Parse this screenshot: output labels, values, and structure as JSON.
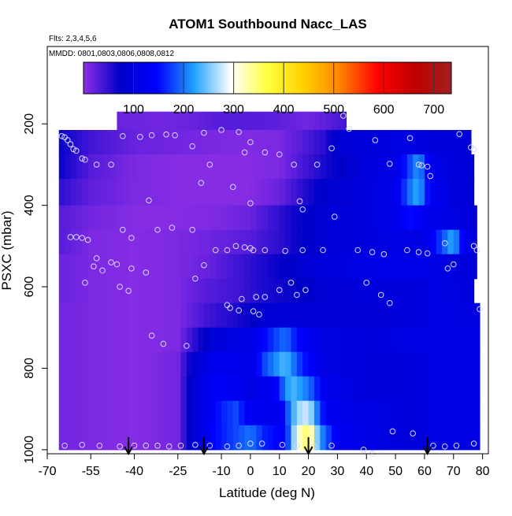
{
  "chart_data": {
    "type": "heatmap",
    "title": "ATOM1 Southbound Nacc_LAS",
    "annotations": [
      "Flts: 2,3,4,5,6",
      "MMDD: 0801,0803,0806,0808,0812"
    ],
    "xlabel": "Latitude (deg N)",
    "ylabel": "PSXC (mbar)",
    "xlim": [
      -70,
      82
    ],
    "ylim": [
      1010,
      10
    ],
    "y_inverted": true,
    "x_ticks": [
      -70,
      -55,
      -40,
      -25,
      -10,
      0,
      10,
      20,
      30,
      40,
      50,
      60,
      70,
      80
    ],
    "x_ticklabels": [
      "-70",
      "-55",
      "-40",
      "-25",
      "-10",
      "0",
      "10",
      "20",
      "30",
      "40",
      "50",
      "60",
      "70",
      "80"
    ],
    "y_ticks": [
      200,
      400,
      600,
      800,
      1000
    ],
    "y_ticklabels": [
      "200",
      "400",
      "600",
      "800",
      "1000"
    ],
    "colorbar": {
      "range": [
        0,
        735
      ],
      "ticks": [
        100,
        200,
        300,
        400,
        500,
        600,
        700
      ],
      "ticklabels": [
        "100",
        "200",
        "300",
        "400",
        "500",
        "600",
        "700"
      ],
      "colors": [
        "#8f2fe6",
        "#0000c8",
        "#0000ff",
        "#1fa0ff",
        "#ffffff",
        "#ffff40",
        "#ffd000",
        "#ff8000",
        "#ff0000",
        "#c00000",
        "#a02020"
      ]
    },
    "pressure_bins": [
      {
        "top": 170,
        "bottom": 215,
        "x0": -46,
        "x1": 33
      },
      {
        "top": 215,
        "bottom": 275,
        "x0": -66,
        "x1": 76
      },
      {
        "top": 275,
        "bottom": 335,
        "x0": -66,
        "x1": 77
      },
      {
        "top": 335,
        "bottom": 400,
        "x0": -66,
        "x1": 77
      },
      {
        "top": 400,
        "bottom": 460,
        "x0": -66,
        "x1": 78
      },
      {
        "top": 460,
        "bottom": 520,
        "x0": -66,
        "x1": 78
      },
      {
        "top": 520,
        "bottom": 580,
        "x0": -66,
        "x1": 78
      },
      {
        "top": 580,
        "bottom": 640,
        "x0": -66,
        "x1": 77
      },
      {
        "top": 640,
        "bottom": 700,
        "x0": -66,
        "x1": 79
      },
      {
        "top": 700,
        "bottom": 760,
        "x0": -66,
        "x1": 79
      },
      {
        "top": 760,
        "bottom": 820,
        "x0": -66,
        "x1": 79
      },
      {
        "top": 820,
        "bottom": 880,
        "x0": -66,
        "x1": 79
      },
      {
        "top": 880,
        "bottom": 940,
        "x0": -66,
        "x1": 79
      },
      {
        "top": 940,
        "bottom": 1000,
        "x0": -66,
        "x1": 79
      }
    ],
    "anchors": [
      [
        [
          -46,
          20
        ],
        [
          -30,
          15
        ],
        [
          -20,
          20
        ],
        [
          -10,
          30
        ],
        [
          0,
          30
        ],
        [
          10,
          25
        ],
        [
          20,
          15
        ],
        [
          33,
          40
        ]
      ],
      [
        [
          -66,
          70
        ],
        [
          -55,
          40
        ],
        [
          -40,
          20
        ],
        [
          -25,
          15
        ],
        [
          -10,
          10
        ],
        [
          0,
          8
        ],
        [
          10,
          10
        ],
        [
          25,
          50
        ],
        [
          30,
          90
        ],
        [
          40,
          100
        ],
        [
          55,
          110
        ],
        [
          62,
          100
        ],
        [
          70,
          100
        ],
        [
          76,
          95
        ]
      ],
      [
        [
          -66,
          70
        ],
        [
          -55,
          30
        ],
        [
          -40,
          10
        ],
        [
          -25,
          5
        ],
        [
          -10,
          5
        ],
        [
          0,
          5
        ],
        [
          10,
          10
        ],
        [
          25,
          60
        ],
        [
          40,
          100
        ],
        [
          50,
          110
        ],
        [
          55,
          180
        ],
        [
          58,
          220
        ],
        [
          62,
          120
        ],
        [
          70,
          100
        ],
        [
          77,
          90
        ]
      ],
      [
        [
          -66,
          50
        ],
        [
          -55,
          25
        ],
        [
          -40,
          10
        ],
        [
          -25,
          5
        ],
        [
          -10,
          5
        ],
        [
          0,
          5
        ],
        [
          10,
          20
        ],
        [
          25,
          80
        ],
        [
          40,
          100
        ],
        [
          50,
          120
        ],
        [
          55,
          200
        ],
        [
          58,
          230
        ],
        [
          62,
          130
        ],
        [
          70,
          100
        ],
        [
          77,
          90
        ]
      ],
      [
        [
          -66,
          30
        ],
        [
          -55,
          15
        ],
        [
          -40,
          5
        ],
        [
          -25,
          5
        ],
        [
          -10,
          10
        ],
        [
          0,
          20
        ],
        [
          10,
          50
        ],
        [
          20,
          80
        ],
        [
          30,
          100
        ],
        [
          40,
          100
        ],
        [
          50,
          120
        ],
        [
          55,
          150
        ],
        [
          62,
          120
        ],
        [
          70,
          110
        ],
        [
          78,
          90
        ]
      ],
      [
        [
          -66,
          30
        ],
        [
          -55,
          10
        ],
        [
          -40,
          5
        ],
        [
          -25,
          10
        ],
        [
          -10,
          20
        ],
        [
          0,
          30
        ],
        [
          10,
          50
        ],
        [
          20,
          80
        ],
        [
          30,
          100
        ],
        [
          40,
          100
        ],
        [
          50,
          110
        ],
        [
          60,
          110
        ],
        [
          66,
          180
        ],
        [
          70,
          230
        ],
        [
          74,
          120
        ],
        [
          78,
          100
        ]
      ],
      [
        [
          -66,
          20
        ],
        [
          -55,
          10
        ],
        [
          -40,
          5
        ],
        [
          -25,
          10
        ],
        [
          -15,
          20
        ],
        [
          -5,
          40
        ],
        [
          5,
          60
        ],
        [
          15,
          80
        ],
        [
          25,
          100
        ],
        [
          40,
          110
        ],
        [
          55,
          120
        ],
        [
          65,
          110
        ],
        [
          72,
          100
        ],
        [
          78,
          95
        ]
      ],
      [
        [
          -66,
          20
        ],
        [
          -55,
          10
        ],
        [
          -40,
          5
        ],
        [
          -25,
          10
        ],
        [
          -15,
          30
        ],
        [
          -5,
          40
        ],
        [
          5,
          60
        ],
        [
          15,
          70
        ],
        [
          25,
          90
        ],
        [
          40,
          100
        ],
        [
          55,
          100
        ],
        [
          65,
          110
        ],
        [
          77,
          100
        ]
      ],
      [
        [
          -66,
          15
        ],
        [
          -55,
          10
        ],
        [
          -40,
          5
        ],
        [
          -25,
          10
        ],
        [
          -15,
          40
        ],
        [
          -10,
          50
        ],
        [
          0,
          70
        ],
        [
          5,
          90
        ],
        [
          15,
          95
        ],
        [
          25,
          90
        ],
        [
          40,
          90
        ],
        [
          55,
          100
        ],
        [
          65,
          110
        ],
        [
          79,
          105
        ]
      ],
      [
        [
          -66,
          15
        ],
        [
          -55,
          10
        ],
        [
          -40,
          5
        ],
        [
          -25,
          10
        ],
        [
          -18,
          60
        ],
        [
          -12,
          100
        ],
        [
          -5,
          110
        ],
        [
          0,
          110
        ],
        [
          5,
          150
        ],
        [
          12,
          200
        ],
        [
          16,
          150
        ],
        [
          25,
          110
        ],
        [
          40,
          100
        ],
        [
          55,
          110
        ],
        [
          65,
          110
        ],
        [
          79,
          110
        ]
      ],
      [
        [
          -66,
          15
        ],
        [
          -55,
          10
        ],
        [
          -40,
          5
        ],
        [
          -25,
          15
        ],
        [
          -20,
          80
        ],
        [
          -12,
          130
        ],
        [
          -5,
          120
        ],
        [
          0,
          110
        ],
        [
          5,
          180
        ],
        [
          12,
          240
        ],
        [
          18,
          160
        ],
        [
          25,
          110
        ],
        [
          40,
          100
        ],
        [
          55,
          100
        ],
        [
          65,
          110
        ],
        [
          79,
          110
        ]
      ],
      [
        [
          -66,
          15
        ],
        [
          -55,
          10
        ],
        [
          -40,
          5
        ],
        [
          -25,
          15
        ],
        [
          -20,
          90
        ],
        [
          -12,
          140
        ],
        [
          -5,
          130
        ],
        [
          0,
          110
        ],
        [
          8,
          130
        ],
        [
          14,
          240
        ],
        [
          20,
          200
        ],
        [
          26,
          120
        ],
        [
          40,
          100
        ],
        [
          55,
          100
        ],
        [
          65,
          110
        ],
        [
          79,
          110
        ]
      ],
      [
        [
          -66,
          15
        ],
        [
          -55,
          10
        ],
        [
          -40,
          5
        ],
        [
          -25,
          15
        ],
        [
          -20,
          90
        ],
        [
          -10,
          160
        ],
        [
          -5,
          180
        ],
        [
          0,
          130
        ],
        [
          10,
          120
        ],
        [
          16,
          260
        ],
        [
          20,
          280
        ],
        [
          26,
          130
        ],
        [
          40,
          110
        ],
        [
          55,
          100
        ],
        [
          65,
          110
        ],
        [
          79,
          110
        ]
      ],
      [
        [
          -66,
          15
        ],
        [
          -55,
          10
        ],
        [
          -40,
          5
        ],
        [
          -25,
          15
        ],
        [
          -20,
          90
        ],
        [
          -12,
          150
        ],
        [
          -5,
          180
        ],
        [
          0,
          200
        ],
        [
          5,
          160
        ],
        [
          12,
          140
        ],
        [
          16,
          300
        ],
        [
          20,
          360
        ],
        [
          24,
          220
        ],
        [
          30,
          130
        ],
        [
          40,
          110
        ],
        [
          55,
          100
        ],
        [
          65,
          110
        ],
        [
          79,
          110
        ]
      ]
    ],
    "samples": [
      [
        -65,
        230
      ],
      [
        -64,
        233
      ],
      [
        -63,
        240
      ],
      [
        -62,
        250
      ],
      [
        -61,
        262
      ],
      [
        -60,
        266
      ],
      [
        -58,
        285
      ],
      [
        -57,
        288
      ],
      [
        -53,
        300
      ],
      [
        -48,
        300
      ],
      [
        -44,
        230
      ],
      [
        -38,
        232
      ],
      [
        -34,
        228
      ],
      [
        -29,
        226
      ],
      [
        -26,
        228
      ],
      [
        -20,
        255
      ],
      [
        -16,
        222
      ],
      [
        -14,
        300
      ],
      [
        -10,
        215
      ],
      [
        -4,
        220
      ],
      [
        0,
        245
      ],
      [
        -2,
        270
      ],
      [
        5,
        270
      ],
      [
        10,
        275
      ],
      [
        15,
        300
      ],
      [
        23,
        300
      ],
      [
        28,
        260
      ],
      [
        32,
        180
      ],
      [
        34,
        212
      ],
      [
        43,
        240
      ],
      [
        48,
        298
      ],
      [
        55,
        235
      ],
      [
        58,
        300
      ],
      [
        59,
        302
      ],
      [
        61,
        305
      ],
      [
        62,
        328
      ],
      [
        72,
        225
      ],
      [
        76,
        258
      ],
      [
        77,
        262
      ],
      [
        -17,
        345
      ],
      [
        -6,
        355
      ],
      [
        0,
        395
      ],
      [
        -35,
        388
      ],
      [
        17,
        390
      ],
      [
        18,
        410
      ],
      [
        29,
        428
      ],
      [
        -27,
        455
      ],
      [
        -32,
        460
      ],
      [
        -44,
        460
      ],
      [
        -46,
        545
      ],
      [
        -48,
        540
      ],
      [
        -56,
        485
      ],
      [
        -58,
        480
      ],
      [
        -60,
        478
      ],
      [
        -62,
        478
      ],
      [
        -41,
        480
      ],
      [
        -41,
        555
      ],
      [
        -36,
        565
      ],
      [
        -53,
        530
      ],
      [
        -54,
        550
      ],
      [
        -57,
        590
      ],
      [
        -51,
        560
      ],
      [
        -45,
        600
      ],
      [
        -42,
        610
      ],
      [
        -20,
        460
      ],
      [
        -19,
        580
      ],
      [
        -16,
        547
      ],
      [
        -12,
        510
      ],
      [
        -8,
        510
      ],
      [
        -5,
        500
      ],
      [
        -2,
        503
      ],
      [
        0,
        505
      ],
      [
        1,
        510
      ],
      [
        5,
        510
      ],
      [
        12,
        512
      ],
      [
        18,
        510
      ],
      [
        25,
        510
      ],
      [
        37,
        510
      ],
      [
        42,
        515
      ],
      [
        46,
        520
      ],
      [
        54,
        510
      ],
      [
        58,
        515
      ],
      [
        61,
        518
      ],
      [
        67,
        493
      ],
      [
        68,
        555
      ],
      [
        70,
        545
      ],
      [
        77,
        500
      ],
      [
        78,
        510
      ],
      [
        79,
        655
      ],
      [
        -3,
        630
      ],
      [
        2,
        625
      ],
      [
        5,
        625
      ],
      [
        10,
        608
      ],
      [
        14,
        590
      ],
      [
        16,
        620
      ],
      [
        19,
        608
      ],
      [
        40,
        590
      ],
      [
        45,
        620
      ],
      [
        48,
        640
      ],
      [
        -8,
        645
      ],
      [
        -7,
        652
      ],
      [
        -4,
        658
      ],
      [
        1,
        660
      ],
      [
        3,
        668
      ],
      [
        -34,
        720
      ],
      [
        -30,
        740
      ],
      [
        -22,
        745
      ],
      [
        -64,
        990
      ],
      [
        -58,
        988
      ],
      [
        -52,
        990
      ],
      [
        -45,
        992
      ],
      [
        -40,
        990
      ],
      [
        -36,
        990
      ],
      [
        -32,
        990
      ],
      [
        -28,
        992
      ],
      [
        -24,
        990
      ],
      [
        -19,
        988
      ],
      [
        -14,
        990
      ],
      [
        -8,
        992
      ],
      [
        -4,
        990
      ],
      [
        0,
        985
      ],
      [
        4,
        985
      ],
      [
        11,
        988
      ],
      [
        16,
        990
      ],
      [
        22,
        992
      ],
      [
        28,
        990
      ],
      [
        39,
        1000
      ],
      [
        42,
        1010
      ],
      [
        49,
        955
      ],
      [
        56,
        960
      ],
      [
        63,
        990
      ],
      [
        67,
        992
      ],
      [
        71,
        990
      ],
      [
        77,
        985
      ]
    ],
    "markers": [
      -42,
      -16,
      20,
      61
    ]
  }
}
